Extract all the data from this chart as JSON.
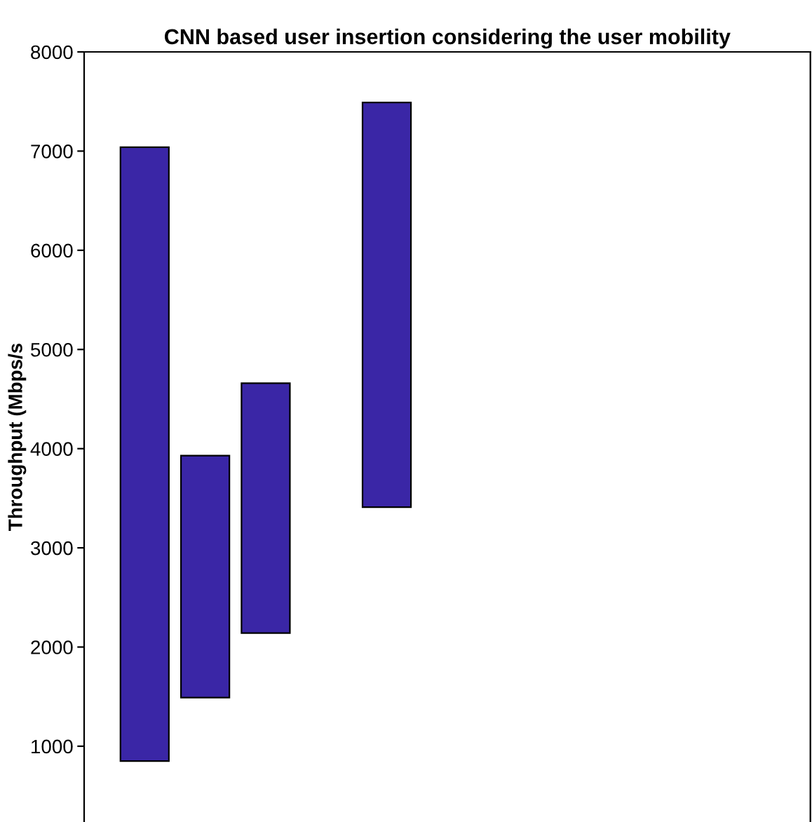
{
  "chart_data": {
    "type": "bar",
    "title": "CNN based user insertion considering the user mobility",
    "ylabel": "Throughput (Mbps/s",
    "categories": [
      null,
      null,
      null,
      null,
      null,
      null,
      null,
      null,
      null,
      null,
      null,
      null
    ],
    "values": [
      6190,
      2440,
      2520,
      null,
      4080,
      null,
      null,
      null,
      null,
      null,
      null,
      null
    ],
    "base": [
      850,
      1490,
      2140,
      null,
      3410,
      null,
      null,
      null,
      null,
      null,
      null,
      null
    ],
    "color": "#3a26a6",
    "ylim": [
      236,
      8000
    ],
    "yticks": [
      1000,
      2000,
      3000,
      4000,
      5000,
      6000,
      7000,
      8000
    ],
    "tick_labels": "y",
    "grid": false,
    "legend": false
  }
}
